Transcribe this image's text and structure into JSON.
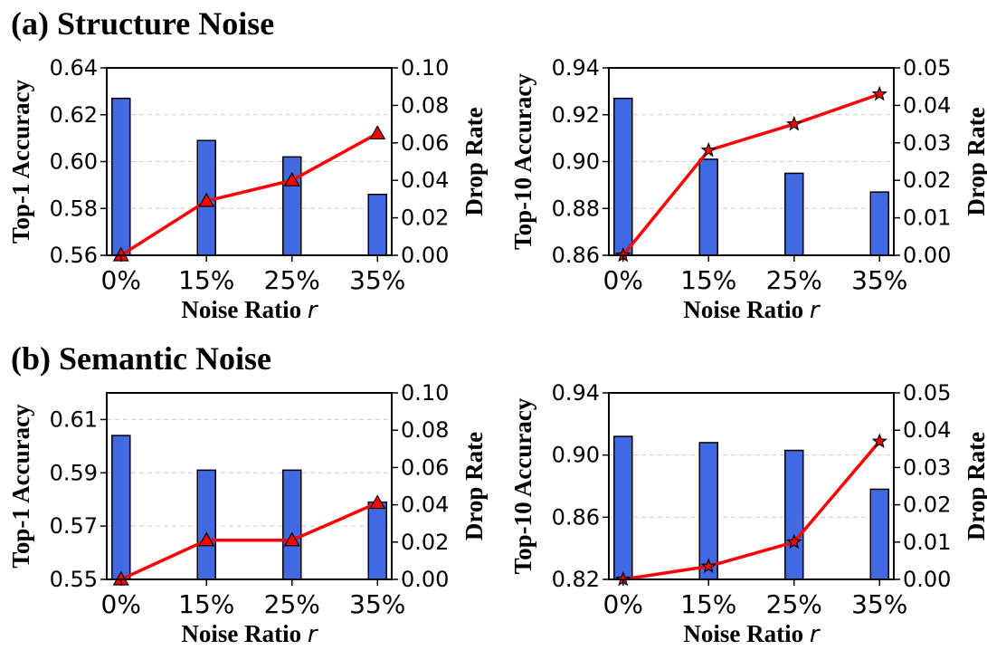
{
  "sections": [
    {
      "title": "(a) Structure Noise"
    },
    {
      "title": "(b) Semantic Noise"
    }
  ],
  "chart_data": [
    {
      "type": "bar+line",
      "categories": [
        "0%",
        "15%",
        "25%",
        "35%"
      ],
      "xlabel": "Noise Ratio",
      "xlabel_var": "r",
      "ylabel": "Top-1 Accuracy",
      "y2label": "Drop Rate",
      "ylim": [
        0.56,
        0.64
      ],
      "yticks": [
        "0.56",
        "0.58",
        "0.60",
        "0.62",
        "0.64"
      ],
      "y2lim": [
        0.0,
        0.1
      ],
      "y2ticks": [
        "0.00",
        "0.02",
        "0.04",
        "0.06",
        "0.08",
        "0.10"
      ],
      "bar_values": [
        0.627,
        0.609,
        0.602,
        0.586
      ],
      "line_values": [
        0.0,
        0.029,
        0.04,
        0.065
      ],
      "marker": "triangle",
      "grid": true,
      "bar_color": "#4169e1",
      "line_color": "#ff0000"
    },
    {
      "type": "bar+line",
      "categories": [
        "0%",
        "15%",
        "25%",
        "35%"
      ],
      "xlabel": "Noise Ratio",
      "xlabel_var": "r",
      "ylabel": "Top-10 Accuracy",
      "y2label": "Drop Rate",
      "ylim": [
        0.86,
        0.94
      ],
      "yticks": [
        "0.86",
        "0.88",
        "0.90",
        "0.92",
        "0.94"
      ],
      "y2lim": [
        0.0,
        0.05
      ],
      "y2ticks": [
        "0.00",
        "0.01",
        "0.02",
        "0.03",
        "0.04",
        "0.05"
      ],
      "bar_values": [
        0.927,
        0.901,
        0.895,
        0.887
      ],
      "line_values": [
        0.0,
        0.028,
        0.035,
        0.043
      ],
      "marker": "star",
      "grid": true,
      "bar_color": "#4169e1",
      "line_color": "#ff0000"
    },
    {
      "type": "bar+line",
      "categories": [
        "0%",
        "15%",
        "25%",
        "35%"
      ],
      "xlabel": "Noise Ratio",
      "xlabel_var": "r",
      "ylabel": "Top-1 Accuracy",
      "y2label": "Drop Rate",
      "ylim": [
        0.55,
        0.62
      ],
      "yticks": [
        "0.55",
        "0.57",
        "0.59",
        "0.61"
      ],
      "ytick_values": [
        0.55,
        0.57,
        0.59,
        0.61
      ],
      "y2lim": [
        0.0,
        0.1
      ],
      "y2ticks": [
        "0.00",
        "0.02",
        "0.04",
        "0.06",
        "0.08",
        "0.10"
      ],
      "bar_values": [
        0.604,
        0.591,
        0.591,
        0.579
      ],
      "line_values": [
        0.0,
        0.021,
        0.021,
        0.041
      ],
      "marker": "triangle",
      "grid": true,
      "bar_color": "#4169e1",
      "line_color": "#ff0000"
    },
    {
      "type": "bar+line",
      "categories": [
        "0%",
        "15%",
        "25%",
        "35%"
      ],
      "xlabel": "Noise Ratio",
      "xlabel_var": "r",
      "ylabel": "Top-10 Accuracy",
      "y2label": "Drop Rate",
      "ylim": [
        0.82,
        0.94
      ],
      "yticks": [
        "0.82",
        "0.86",
        "0.90",
        "0.94"
      ],
      "y2lim": [
        0.0,
        0.05
      ],
      "y2ticks": [
        "0.00",
        "0.01",
        "0.02",
        "0.03",
        "0.04",
        "0.05"
      ],
      "bar_values": [
        0.912,
        0.908,
        0.903,
        0.878
      ],
      "line_values": [
        0.0,
        0.0035,
        0.01,
        0.037
      ],
      "marker": "star",
      "grid": true,
      "bar_color": "#4169e1",
      "line_color": "#ff0000"
    }
  ]
}
